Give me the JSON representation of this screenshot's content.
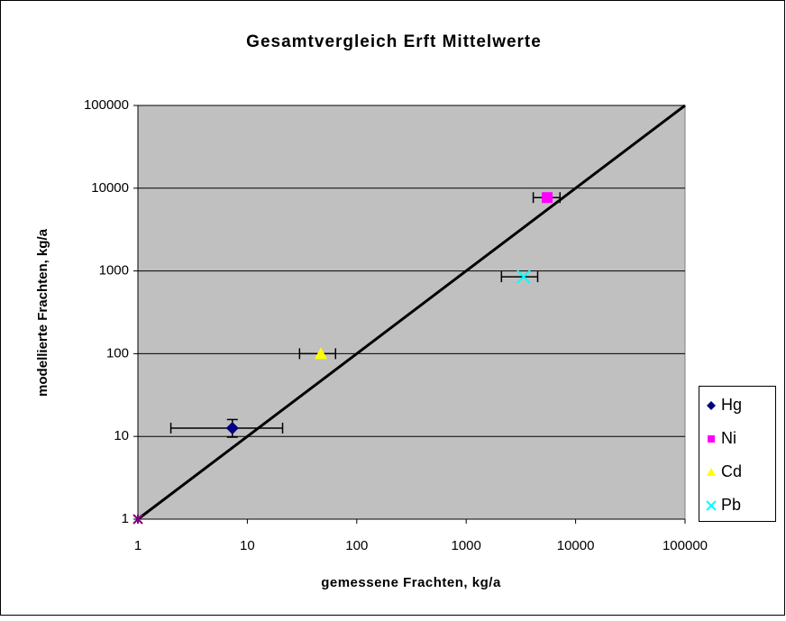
{
  "chart_data": {
    "type": "scatter",
    "title": "Gesamtvergleich Erft Mittelwerte",
    "x_label": "gemessene Frachten, kg/a",
    "y_label": "modellierte Frachten, kg/a",
    "x_scale": "log",
    "y_scale": "log",
    "xlim": [
      1,
      100000
    ],
    "ylim": [
      1,
      100000
    ],
    "xticks": [
      1,
      10,
      100,
      1000,
      10000,
      100000
    ],
    "yticks": [
      1,
      10,
      100,
      1000,
      10000,
      100000
    ],
    "grid": true,
    "plot_background": "#c0c0c0",
    "legend": "right",
    "reference_line": {
      "x": [
        1,
        100000
      ],
      "values": [
        1,
        100000
      ],
      "color": "#000000",
      "marker_color": "#800080"
    },
    "series": [
      {
        "name": "Hg",
        "color": "#000080",
        "marker": "diamond",
        "x": [
          7.3
        ],
        "values": [
          12.6
        ],
        "x_range": [
          [
            2,
            21
          ]
        ],
        "y_range": [
          [
            9.8,
            16
          ]
        ]
      },
      {
        "name": "Ni",
        "color": "#ff00ff",
        "marker": "square",
        "x": [
          5500
        ],
        "values": [
          7700
        ],
        "x_range": [
          [
            4100,
            7200
          ]
        ]
      },
      {
        "name": "Cd",
        "color": "#ffff00",
        "marker": "triangle",
        "x": [
          47
        ],
        "values": [
          100
        ],
        "x_range": [
          [
            30,
            64
          ]
        ]
      },
      {
        "name": "Pb",
        "color": "#00ffff",
        "marker": "cross",
        "x": [
          3350
        ],
        "values": [
          850
        ],
        "x_range": [
          [
            2100,
            4500
          ]
        ]
      }
    ]
  }
}
